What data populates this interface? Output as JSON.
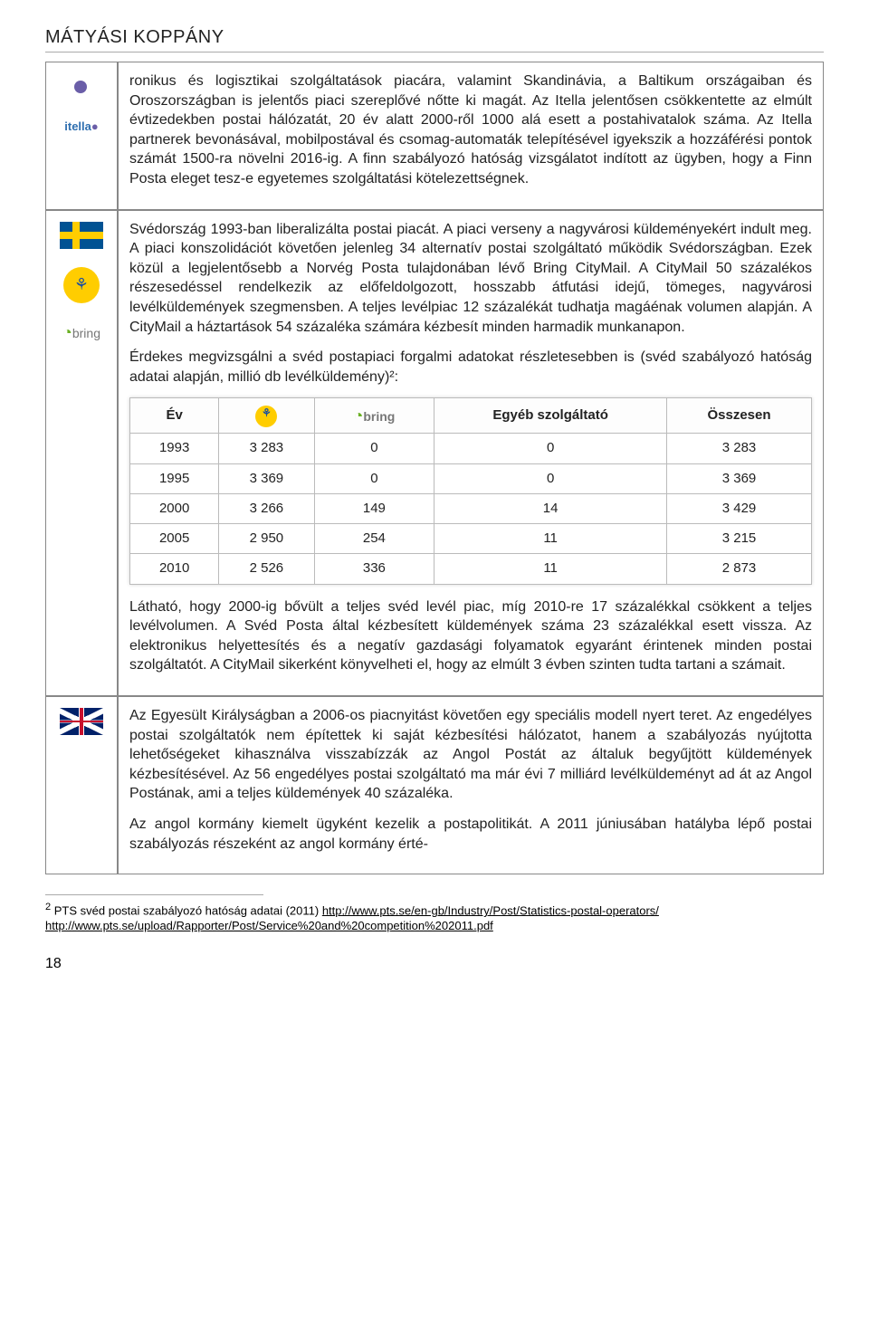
{
  "author": "MÁTYÁSI KOPPÁNY",
  "rows": [
    {
      "icons": [
        "itella"
      ],
      "paras": [
        "ronikus és logisztikai szolgáltatások piacára, valamint Skandinávia, a Baltikum országaiban és Oroszországban is jelentős piaci szereplővé nőtte ki magát. Az Itella jelentősen csökkentette az elmúlt évtizedekben postai hálózatát, 20 év alatt 2000-ről 1000 alá esett a postahivatalok száma. Az Itella partnerek bevonásával, mobilpostával és csomag-automaták telepítésével igyekszik a hozzáférési pontok számát 1500-ra növelni 2016-ig. A finn szabályozó hatóság vizsgálatot indított az ügyben, hogy a Finn Posta eleget tesz-e egyetemes szolgáltatási kötelezettségnek."
      ]
    },
    {
      "icons": [
        "flag-se",
        "posten",
        "bring"
      ],
      "paras": [
        "Svédország 1993-ban liberalizálta postai piacát. A piaci verseny a nagyvárosi küldeményekért indult meg. A piaci konszolidációt követően jelenleg 34 alternatív postai szolgáltató működik Svédországban. Ezek közül a legjelentősebb a Norvég Posta tulajdonában lévő Bring CityMail. A CityMail 50 százalékos részesedéssel rendelkezik az előfeldolgozott, hosszabb átfutási idejű, tömeges, nagyvárosi levélküldemények szegmensben. A teljes levélpiac 12 százalékát tudhatja magáénak volumen alapján. A CityMail a háztartások 54 százaléka számára kézbesít minden harmadik munkanapon.",
        "Érdekes megvizsgálni a svéd postapiaci forgalmi adatokat részletesebben is (svéd szabályozó hatóság adatai alapján, millió db levélküldemény)²:"
      ],
      "table": {
        "columns": [
          "Év",
          "posten-icon",
          "bring-icon",
          "Egyéb szolgáltató",
          "Összesen"
        ],
        "rows": [
          [
            "1993",
            "3 283",
            "0",
            "0",
            "3 283"
          ],
          [
            "1995",
            "3 369",
            "0",
            "0",
            "3 369"
          ],
          [
            "2000",
            "3 266",
            "149",
            "14",
            "3 429"
          ],
          [
            "2005",
            "2 950",
            "254",
            "11",
            "3 215"
          ],
          [
            "2010",
            "2 526",
            "336",
            "11",
            "2 873"
          ]
        ]
      },
      "after_paras": [
        "Látható, hogy 2000-ig bővült a teljes svéd levél piac, míg 2010-re 17 százalékkal csökkent a teljes levélvolumen. A Svéd Posta által kézbesített küldemények száma 23 százalékkal esett vissza. Az elektronikus helyettesítés és a negatív gazdasági folyamatok egyaránt érintenek minden postai szolgáltatót. A CityMail sikerként könyvelheti el, hogy az elmúlt 3 évben szinten tudta tartani a számait."
      ]
    },
    {
      "icons": [
        "flag-uk"
      ],
      "paras": [
        "Az Egyesült Királyságban a 2006-os piacnyitást követően egy speciális modell nyert teret. Az engedélyes postai szolgáltatók nem építettek ki saját kézbesítési hálózatot, hanem a szabályozás nyújtotta lehetőségeket kihasználva visszabízzák az Angol Postát az általuk begyűjtött küldemények kézbesítésével. Az 56 engedélyes postai szolgáltató ma már évi 7 milliárd levélküldeményt ad át az Angol Postának, ami a teljes küldemények 40 százaléka.",
        "Az angol kormány kiemelt ügyként kezelik a postapolitikát. A 2011 júniusában hatályba lépő postai szabályozás részeként az angol kormány érté-"
      ]
    }
  ],
  "footnote": {
    "marker": "2",
    "text_prefix": "PTS svéd postai szabályozó hatóság adatai (2011) ",
    "link1": "http://www.pts.se/en-gb/Industry/Post/Statistics-postal-operators/",
    "link2": "http://www.pts.se/upload/Rapporter/Post/Service%20and%20competition%202011.pdf"
  },
  "page_number": "18",
  "colors": {
    "border": "#888888",
    "text": "#222222"
  }
}
